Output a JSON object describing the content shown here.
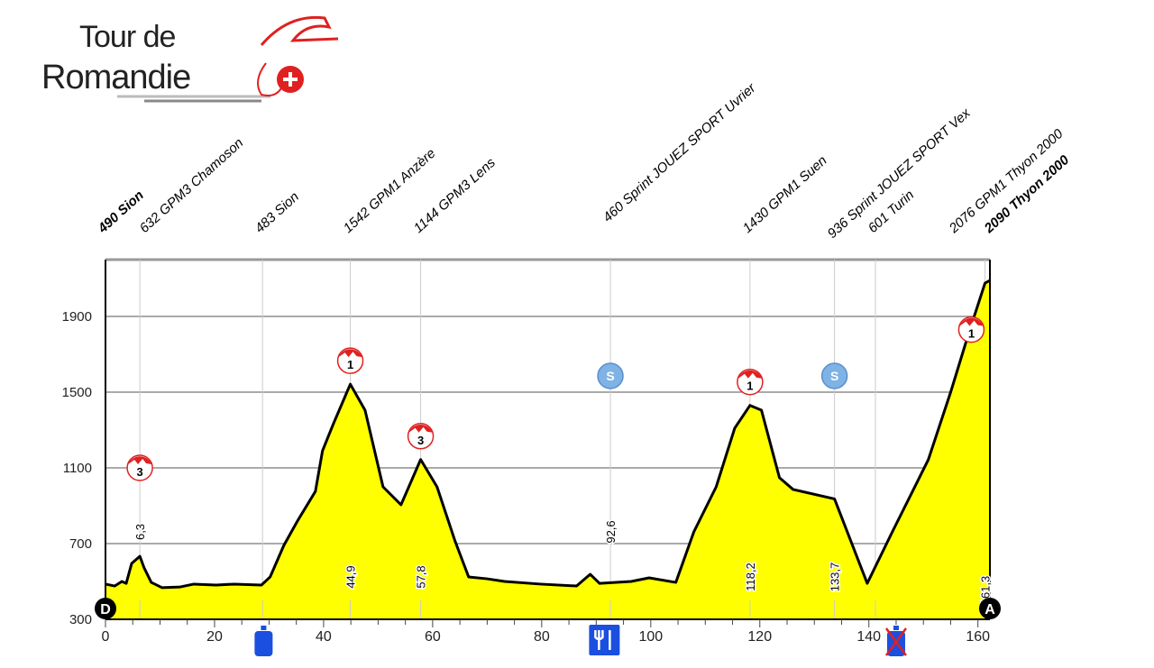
{
  "logo": {
    "line1": "Tour de",
    "line2": "Romandie"
  },
  "chart_data": {
    "type": "area",
    "title": "",
    "xlabel": "",
    "ylabel": "",
    "xlim": [
      0,
      162.2
    ],
    "ylim": [
      300,
      2200
    ],
    "x_ticks": [
      0,
      20,
      40,
      60,
      80,
      100,
      120,
      140,
      160
    ],
    "y_ticks": [
      300,
      700,
      1100,
      1500,
      1900
    ],
    "grid": true,
    "colors": {
      "fill": "#ffff00",
      "line": "#000000",
      "kom": "#e02020",
      "sprint": "#7fb2e5",
      "icons": "#1a4fe0"
    },
    "profile": [
      [
        0,
        486
      ],
      [
        1.7,
        476
      ],
      [
        3,
        500
      ],
      [
        3.8,
        490
      ],
      [
        4.8,
        595
      ],
      [
        6.3,
        633
      ],
      [
        7.1,
        571
      ],
      [
        8.4,
        495
      ],
      [
        10.4,
        467
      ],
      [
        13.7,
        471
      ],
      [
        16.2,
        486
      ],
      [
        20.3,
        481
      ],
      [
        23.6,
        486
      ],
      [
        28.6,
        481
      ],
      [
        30.2,
        524
      ],
      [
        32.7,
        690
      ],
      [
        35.2,
        819
      ],
      [
        38.5,
        976
      ],
      [
        39.8,
        1190
      ],
      [
        41.8,
        1333
      ],
      [
        44.9,
        1542
      ],
      [
        47.6,
        1405
      ],
      [
        50.9,
        1000
      ],
      [
        54.2,
        905
      ],
      [
        57.8,
        1144
      ],
      [
        60.8,
        1000
      ],
      [
        64.1,
        714
      ],
      [
        66.6,
        524
      ],
      [
        70,
        514
      ],
      [
        73.2,
        500
      ],
      [
        79.8,
        486
      ],
      [
        86.4,
        476
      ],
      [
        88.9,
        538
      ],
      [
        90.6,
        490
      ],
      [
        96.4,
        500
      ],
      [
        99.7,
        519
      ],
      [
        104.6,
        495
      ],
      [
        107.9,
        762
      ],
      [
        112,
        1000
      ],
      [
        115.4,
        1310
      ],
      [
        118.2,
        1430
      ],
      [
        120.3,
        1405
      ],
      [
        123.6,
        1048
      ],
      [
        126.1,
        986
      ],
      [
        133.7,
        936
      ],
      [
        139.7,
        490
      ],
      [
        144.3,
        762
      ],
      [
        150.9,
        1143
      ],
      [
        155,
        1500
      ],
      [
        158.3,
        1810
      ],
      [
        161.3,
        2076
      ],
      [
        162.2,
        2090
      ]
    ],
    "waypoints": [
      {
        "km": 0,
        "label": "490 Sion",
        "bold": true,
        "km_label": ""
      },
      {
        "km": 6.3,
        "label": "632  GPM3 Chamoson",
        "km_label": "6,3"
      },
      {
        "km": 28.8,
        "label": "483 Sion",
        "km_label": ""
      },
      {
        "km": 44.9,
        "label": "1542 GPM1 Anzère",
        "km_label": "44,9"
      },
      {
        "km": 57.8,
        "label": "1144 GPM3 Lens",
        "km_label": "57,8"
      },
      {
        "km": 92.6,
        "label": "460 Sprint JOUEZ SPORT Uvrier",
        "km_label": "92,6"
      },
      {
        "km": 118.2,
        "label": "1430 GPM1 Suen",
        "km_label": "118,2"
      },
      {
        "km": 133.7,
        "label": "936 Sprint JOUEZ SPORT Vex",
        "km_label": "133,7"
      },
      {
        "km": 141.2,
        "label": "601 Turin",
        "km_label": ""
      },
      {
        "km": 161.3,
        "label": "2076 GPM1 Thyon 2000",
        "km_label": "161,3"
      },
      {
        "km": 162.2,
        "label": "2090 Thyon 2000",
        "bold": true,
        "km_label": ""
      }
    ],
    "kom_markers": [
      {
        "km": 6.3,
        "cat": "3"
      },
      {
        "km": 44.9,
        "cat": "1"
      },
      {
        "km": 57.8,
        "cat": "3"
      },
      {
        "km": 118.2,
        "cat": "1"
      },
      {
        "km": 158.8,
        "cat": "1"
      }
    ],
    "sprint_markers": [
      {
        "km": 92.6,
        "label": "S"
      },
      {
        "km": 133.7,
        "label": "S"
      }
    ],
    "start_label": "D",
    "finish_label": "A",
    "bottom_icons": [
      {
        "km": 29,
        "icon": "water-bottle-icon"
      },
      {
        "km": 91.5,
        "icon": "feed-zone-icon"
      },
      {
        "km": 145,
        "icon": "no-bottle-zone-icon"
      }
    ]
  }
}
